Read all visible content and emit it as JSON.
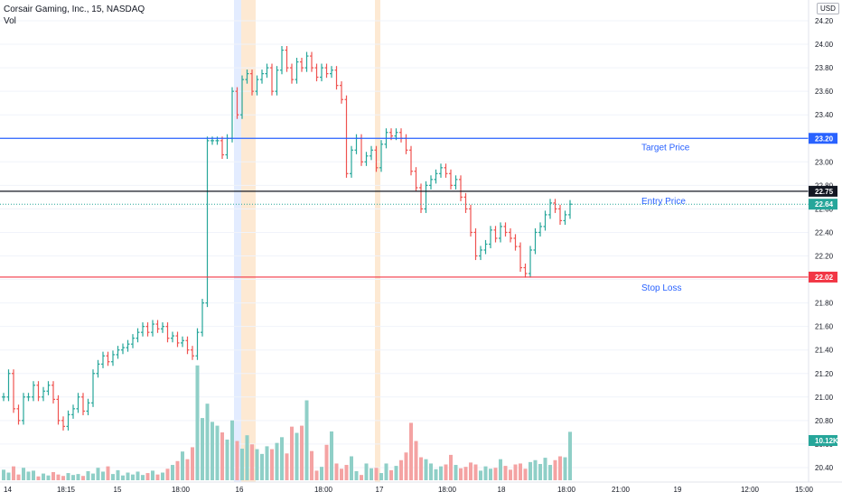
{
  "header": {
    "symbol_line": "Corsair Gaming, Inc., 15, NASDAQ",
    "volume_label": "Vol",
    "currency": "USD"
  },
  "colors": {
    "up": "#26a69a",
    "down": "#ef5350",
    "vol_up": "#8fcfc7",
    "vol_down": "#f4a3a3",
    "target_line": "#2962ff",
    "entry_line": "#131722",
    "stop_line": "#f23645",
    "last_price": "#26a69a",
    "annotation_text": "#2962ff",
    "premarket_band": "#e3ecff",
    "afterhours_band": "#fde9d3"
  },
  "chart_data": {
    "type": "candlestick",
    "title": "Corsair Gaming, Inc., 15, NASDAQ",
    "interval": "15",
    "exchange": "NASDAQ",
    "currency": "USD",
    "ylim": [
      20.35,
      24.3
    ],
    "y_ticks": [
      "24.20",
      "24.00",
      "23.80",
      "23.60",
      "23.40",
      "23.20",
      "23.00",
      "22.80",
      "22.60",
      "22.40",
      "22.20",
      "22.00",
      "21.80",
      "21.60",
      "21.40",
      "21.20",
      "21.00",
      "20.80",
      "20.60",
      "20.40"
    ],
    "x_ticks": [
      "14",
      "18:15",
      "15",
      "18:00",
      "16",
      "18:00",
      "17",
      "18:00",
      "18",
      "18:00",
      "21:00",
      "19",
      "12:00",
      "15:00"
    ],
    "price_lines": [
      {
        "name": "Target Price",
        "value": 23.2,
        "badge": "23.20",
        "color": "#2962ff"
      },
      {
        "name": "Entry Price",
        "value": 22.75,
        "badge": "22.75",
        "color": "#131722"
      },
      {
        "name": "Stop Loss",
        "value": 22.02,
        "badge": "22.02",
        "color": "#f23645"
      }
    ],
    "last_price": {
      "value": 22.64,
      "badge": "22.64"
    },
    "last_volume": {
      "badge": "10.12K"
    },
    "annotations": [
      "Target Price",
      "Entry Price",
      "Stop Loss"
    ],
    "closes": [
      21.0,
      21.2,
      20.9,
      20.8,
      21.0,
      21.0,
      21.1,
      21.0,
      21.05,
      21.1,
      20.98,
      20.8,
      20.75,
      20.85,
      20.9,
      21.0,
      20.88,
      20.95,
      21.2,
      21.28,
      21.35,
      21.3,
      21.36,
      21.4,
      21.42,
      21.45,
      21.5,
      21.55,
      21.6,
      21.55,
      21.62,
      21.58,
      21.6,
      21.5,
      21.52,
      21.46,
      21.48,
      21.4,
      21.35,
      21.55,
      21.8,
      23.18,
      23.18,
      23.18,
      23.06,
      23.2,
      23.6,
      23.4,
      23.7,
      23.75,
      23.6,
      23.7,
      23.75,
      23.8,
      23.6,
      23.78,
      23.95,
      23.8,
      23.7,
      23.85,
      23.8,
      23.9,
      23.8,
      23.72,
      23.8,
      23.75,
      23.78,
      23.65,
      23.53,
      22.9,
      23.1,
      23.2,
      23.0,
      23.05,
      23.1,
      22.95,
      23.15,
      23.25,
      23.22,
      23.25,
      23.2,
      23.1,
      22.92,
      22.78,
      22.6,
      22.8,
      22.85,
      22.9,
      22.95,
      22.9,
      22.8,
      22.85,
      22.7,
      22.6,
      22.4,
      22.2,
      22.25,
      22.3,
      22.42,
      22.35,
      22.45,
      22.4,
      22.35,
      22.28,
      22.1,
      22.05,
      22.25,
      22.4,
      22.45,
      22.55,
      22.65,
      22.6,
      22.5,
      22.55,
      22.64
    ],
    "volumes": [
      2.2,
      1.6,
      2.9,
      1.2,
      2.6,
      1.8,
      2.0,
      0.8,
      1.4,
      1.0,
      1.7,
      1.2,
      0.9,
      1.5,
      1.1,
      1.3,
      0.9,
      1.9,
      1.4,
      2.6,
      1.8,
      2.9,
      1.3,
      2.1,
      1.0,
      1.6,
      1.2,
      1.8,
      1.1,
      1.5,
      2.0,
      1.2,
      1.6,
      2.4,
      3.2,
      4.0,
      6.0,
      4.4,
      6.9,
      24.0,
      13.0,
      16.0,
      12.2,
      11.4,
      10.0,
      8.5,
      12.5,
      8.2,
      6.6,
      9.4,
      7.5,
      6.5,
      5.5,
      7.1,
      6.5,
      7.8,
      9.0,
      5.6,
      11.2,
      9.9,
      11.4,
      16.7,
      6.1,
      2.0,
      2.8,
      7.4,
      10.2,
      3.5,
      2.4,
      3.2,
      5.0,
      1.9,
      1.1,
      3.5,
      2.5,
      2.6,
      1.5,
      3.5,
      2.1,
      3.0,
      4.2,
      5.8,
      12.0,
      8.2,
      4.8,
      4.4,
      3.5,
      2.3,
      2.9,
      3.3,
      5.3,
      3.2,
      2.5,
      2.8,
      3.7,
      3.3,
      2.0,
      2.9,
      2.4,
      2.6,
      4.4,
      3.0,
      2.2,
      3.3,
      3.5,
      2.4,
      3.8,
      4.2,
      3.4,
      4.7,
      3.2,
      4.2,
      5.0,
      4.8,
      10.12
    ]
  }
}
